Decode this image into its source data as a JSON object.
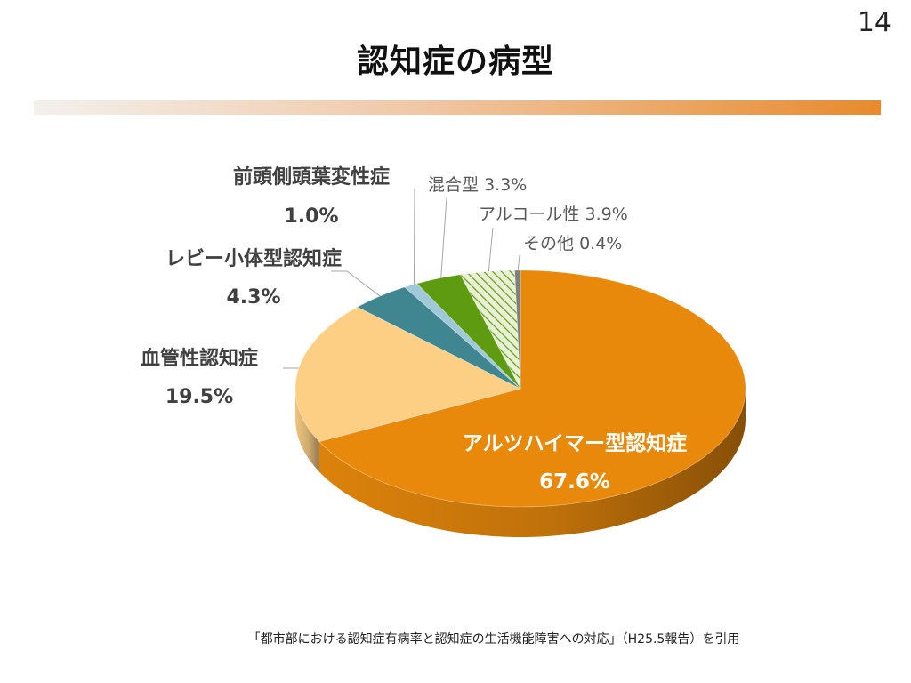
{
  "page_number": "14",
  "title": "認知症の病型",
  "source": "「都市部における認知症有病率と認知症の生活機能障害への対応」（H25.5報告）を引用",
  "chart_data": {
    "type": "pie",
    "title": "",
    "categories": [
      "アルツハイマー型認知症",
      "血管性認知症",
      "レビー小体型認知症",
      "前頭側頭葉変性症",
      "混合型",
      "アルコール性",
      "その他"
    ],
    "values": [
      67.6,
      19.5,
      4.3,
      1.0,
      3.3,
      3.9,
      0.4
    ],
    "value_labels": [
      "67.6%",
      "19.5%",
      "4.3%",
      "1.0%",
      "3.3%",
      "3.9%",
      "0.4%"
    ],
    "colors": [
      "#e8890c",
      "#fccf85",
      "#3f8690",
      "#9fc8d8",
      "#5e9b10",
      "#9fcc60",
      "#7f7f7f"
    ],
    "hatched": [
      "アルコール性"
    ],
    "start_angle_deg": 0,
    "direction": "clockwise",
    "style": "3d-tilted",
    "legend": "none"
  }
}
